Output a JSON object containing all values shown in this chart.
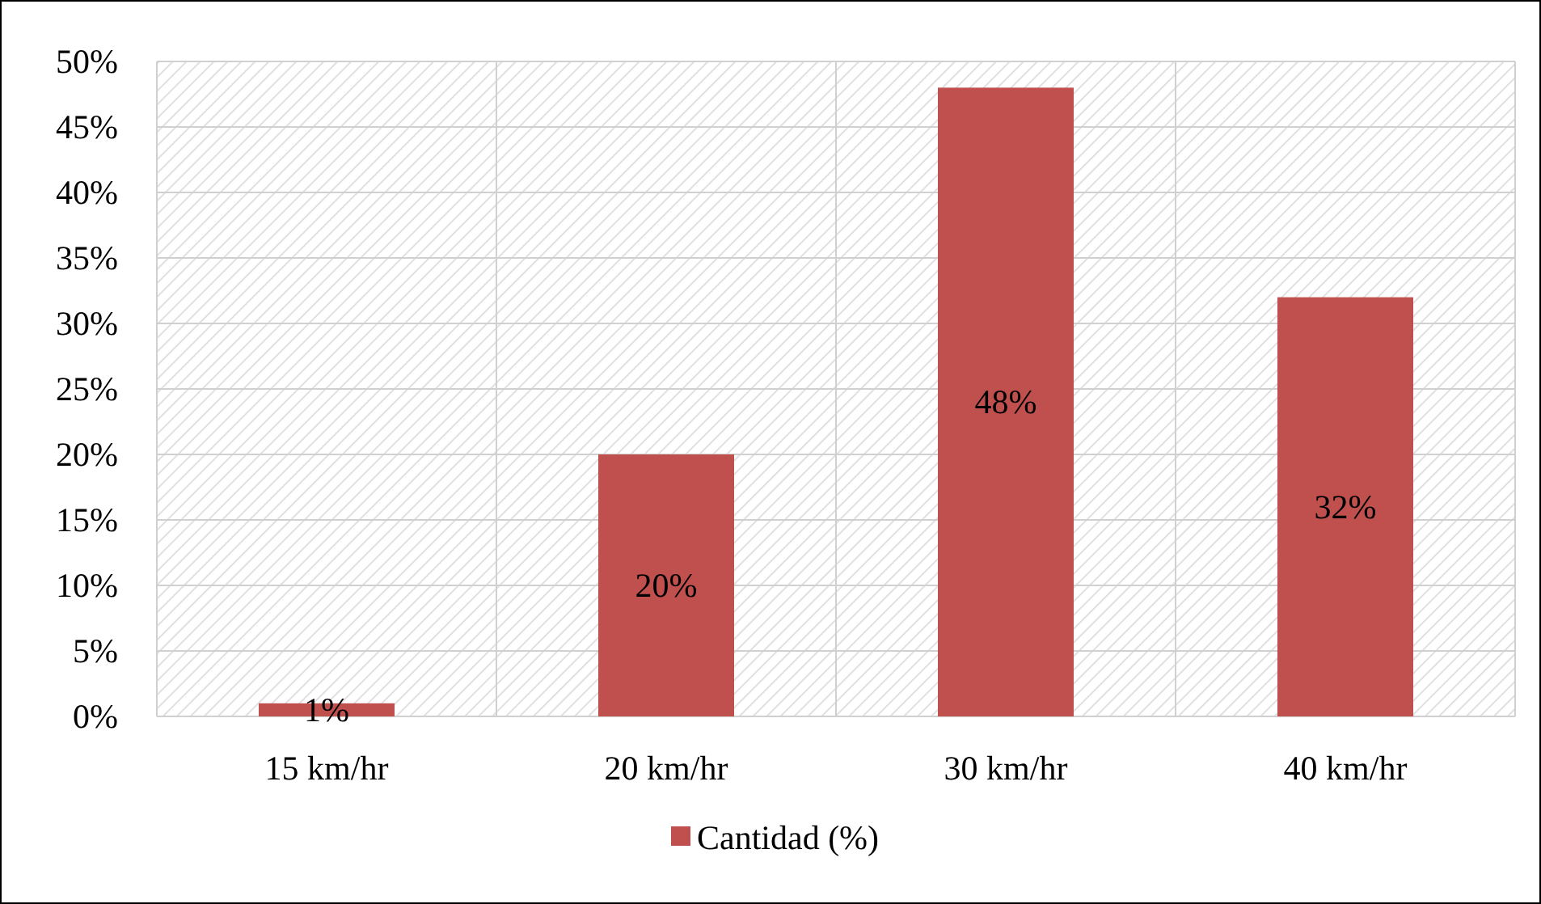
{
  "chart_data": {
    "type": "bar",
    "categories": [
      "15 km/hr",
      "20 km/hr",
      "30 km/hr",
      "40 km/hr"
    ],
    "series": [
      {
        "name": "Cantidad (%)",
        "color": "#c0504d",
        "values": [
          1,
          20,
          48,
          32
        ],
        "value_labels": [
          "1%",
          "20%",
          "48%",
          "32%"
        ]
      }
    ],
    "ylim": [
      0,
      50
    ],
    "yticks": [
      {
        "value": 0,
        "label": "0%"
      },
      {
        "value": 5,
        "label": "5%"
      },
      {
        "value": 10,
        "label": "10%"
      },
      {
        "value": 15,
        "label": "15%"
      },
      {
        "value": 20,
        "label": "20%"
      },
      {
        "value": 25,
        "label": "25%"
      },
      {
        "value": 30,
        "label": "30%"
      },
      {
        "value": 35,
        "label": "35%"
      },
      {
        "value": 40,
        "label": "40%"
      },
      {
        "value": 45,
        "label": "45%"
      },
      {
        "value": 50,
        "label": "50%"
      }
    ],
    "grid": true,
    "legend": "bottom"
  }
}
